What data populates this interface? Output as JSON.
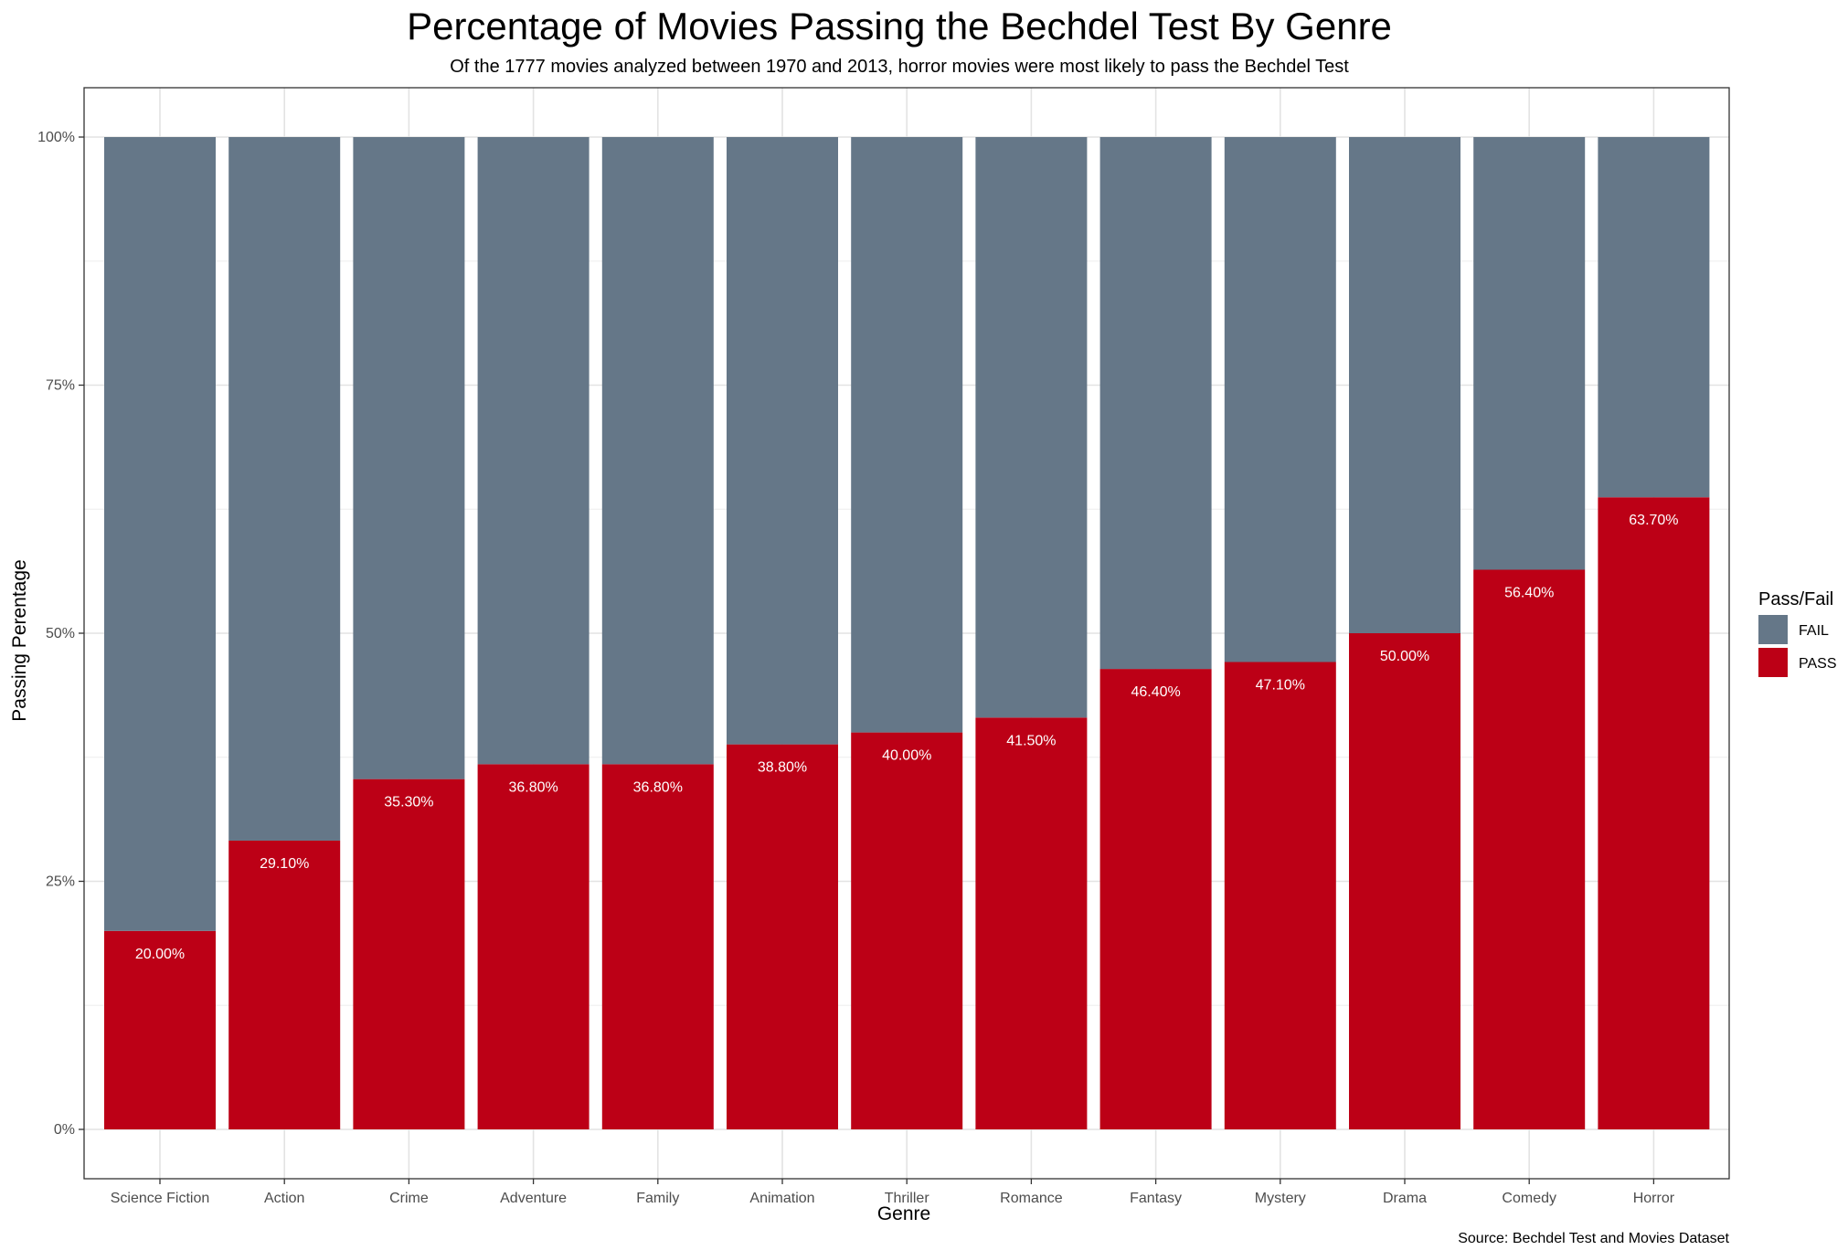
{
  "chart_data": {
    "type": "bar",
    "stacked": true,
    "title": "Percentage of Movies Passing the Bechdel Test By Genre",
    "subtitle": "Of the 1777 movies analyzed between 1970 and 2013, horror movies were most likely to pass the Bechdel Test",
    "xlabel": "Genre",
    "ylabel": "Passing Perentage",
    "caption": "Source: Bechdel Test and Movies Dataset",
    "ylim": [
      0,
      100
    ],
    "y_ticks": [
      0,
      25,
      50,
      75,
      100
    ],
    "y_tick_labels": [
      "0%",
      "25%",
      "50%",
      "75%",
      "100%"
    ],
    "grid": true,
    "legend": {
      "title": "Pass/Fail",
      "placement": "right",
      "entries": [
        "FAIL",
        "PASS"
      ]
    },
    "categories": [
      "Science Fiction",
      "Action",
      "Crime",
      "Adventure",
      "Family",
      "Animation",
      "Thriller",
      "Romance",
      "Fantasy",
      "Mystery",
      "Drama",
      "Comedy",
      "Horror"
    ],
    "series": [
      {
        "name": "PASS",
        "color": "#bc0016",
        "values": [
          20.0,
          29.1,
          35.3,
          36.8,
          36.8,
          38.8,
          40.0,
          41.5,
          46.4,
          47.1,
          50.0,
          56.4,
          63.7
        ]
      },
      {
        "name": "FAIL",
        "color": "#657788",
        "values": [
          80.0,
          70.9,
          64.7,
          63.2,
          63.2,
          61.2,
          60.0,
          58.5,
          53.6,
          52.9,
          50.0,
          43.6,
          36.3
        ]
      }
    ],
    "data_labels": [
      "20.00%",
      "29.10%",
      "35.30%",
      "36.80%",
      "36.80%",
      "38.80%",
      "40.00%",
      "41.50%",
      "46.40%",
      "47.10%",
      "50.00%",
      "56.40%",
      "63.70%"
    ]
  }
}
